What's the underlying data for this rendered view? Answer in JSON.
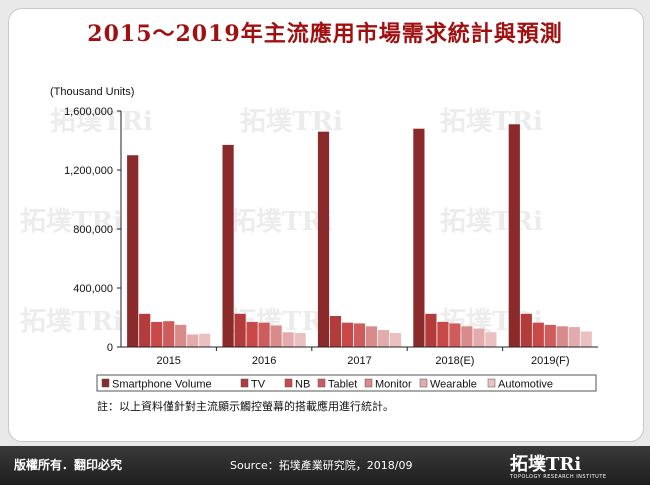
{
  "title": "2015～2019年主流應用市場需求統計與預測",
  "note": "註：以上資料僅針對主流顯示觸控螢幕的搭載應用進行統計。",
  "footer": {
    "copyright": "版權所有．翻印必究",
    "source": "Source：拓墣產業研究院，2018/09",
    "logo_text": "拓墣TRi",
    "logo_sub": "TOPOLOGY RESEARCH INSTITUTE"
  },
  "colors": {
    "title": "#a01010",
    "series": [
      "#8b2a2a",
      "#b23b3b",
      "#c94848",
      "#cf5c5c",
      "#d98a8a",
      "#e3abab",
      "#ebc0c0"
    ]
  },
  "chart_data": {
    "type": "bar",
    "ylabel": "(Thousand Units)",
    "ylim": [
      0,
      1600000
    ],
    "yticks": [
      0,
      400000,
      800000,
      1200000,
      1600000
    ],
    "ytick_labels": [
      "0",
      "400,000",
      "800,000",
      "1,200,000",
      "1,600,000"
    ],
    "categories": [
      "2015",
      "2016",
      "2017",
      "2018(E)",
      "2019(F)"
    ],
    "series": [
      {
        "name": "Smartphone Volume",
        "values": [
          1300000,
          1370000,
          1460000,
          1480000,
          1510000
        ]
      },
      {
        "name": "TV",
        "values": [
          225000,
          225000,
          210000,
          225000,
          225000
        ]
      },
      {
        "name": "NB",
        "values": [
          170000,
          170000,
          165000,
          170000,
          165000
        ]
      },
      {
        "name": "Tablet",
        "values": [
          175000,
          165000,
          160000,
          160000,
          150000
        ]
      },
      {
        "name": "Monitor",
        "values": [
          150000,
          145000,
          140000,
          140000,
          140000
        ]
      },
      {
        "name": "Wearable",
        "values": [
          85000,
          100000,
          115000,
          125000,
          135000
        ]
      },
      {
        "name": "Automotive",
        "values": [
          90000,
          95000,
          95000,
          100000,
          105000
        ]
      }
    ],
    "legend_position": "bottom"
  }
}
